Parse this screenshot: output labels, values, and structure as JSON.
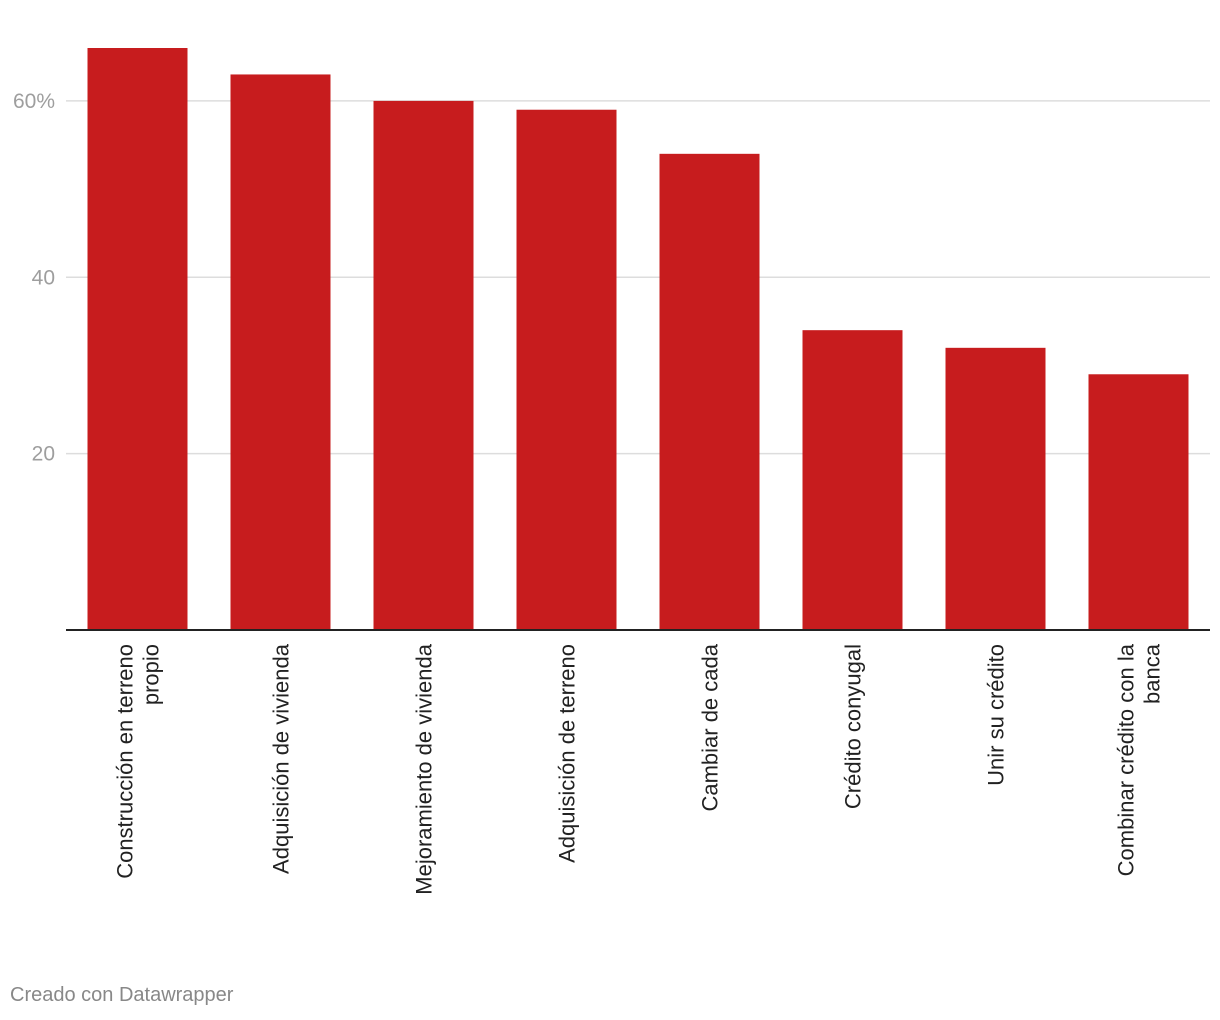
{
  "chart_data": {
    "type": "bar",
    "categories": [
      [
        "Construcción en terreno",
        "propio"
      ],
      [
        "Adquisición de vivienda"
      ],
      [
        "Mejoramiento de vivienda"
      ],
      [
        "Adquisición de terreno"
      ],
      [
        "Cambiar de cada"
      ],
      [
        "Crédito conyugal"
      ],
      [
        "Unir su crédito"
      ],
      [
        "Combinar crédito con la",
        "banca"
      ]
    ],
    "values": [
      66,
      63,
      60,
      59,
      54,
      34,
      32,
      29
    ],
    "ylim": [
      0,
      66
    ],
    "yticks": [
      {
        "value": 20,
        "label": "20"
      },
      {
        "value": 40,
        "label": "40"
      },
      {
        "value": 60,
        "label": "60%"
      }
    ],
    "grid": true,
    "bar_color": "#c71c1e",
    "title": "",
    "xlabel": "",
    "ylabel": ""
  },
  "footer": {
    "credit": "Creado con Datawrapper"
  }
}
